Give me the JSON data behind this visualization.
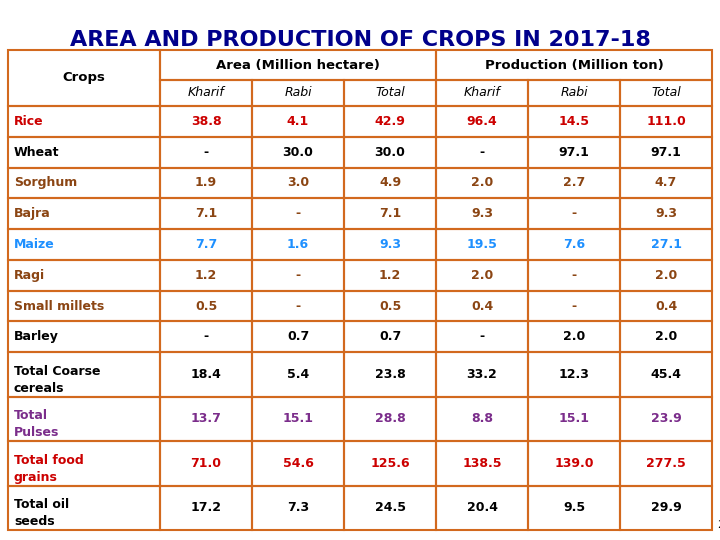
{
  "title": "AREA AND PRODUCTION OF CROPS IN 2017-18",
  "title_color": "#00008B",
  "background_color": "#FFFFFF",
  "border_color": "#D2691E",
  "rows": [
    {
      "crop": "Rice",
      "values": [
        "38.8",
        "4.1",
        "42.9",
        "96.4",
        "14.5",
        "111.0"
      ],
      "color": "#CC0000"
    },
    {
      "crop": "Wheat",
      "values": [
        "-",
        "30.0",
        "30.0",
        "-",
        "97.1",
        "97.1"
      ],
      "color": "#000000"
    },
    {
      "crop": "Sorghum",
      "values": [
        "1.9",
        "3.0",
        "4.9",
        "2.0",
        "2.7",
        "4.7"
      ],
      "color": "#8B4513"
    },
    {
      "crop": "Bajra",
      "values": [
        "7.1",
        "-",
        "7.1",
        "9.3",
        "-",
        "9.3"
      ],
      "color": "#8B4513"
    },
    {
      "crop": "Maize",
      "values": [
        "7.7",
        "1.6",
        "9.3",
        "19.5",
        "7.6",
        "27.1"
      ],
      "color": "#1E90FF"
    },
    {
      "crop": "Ragi",
      "values": [
        "1.2",
        "-",
        "1.2",
        "2.0",
        "-",
        "2.0"
      ],
      "color": "#8B4513"
    },
    {
      "crop": "Small millets",
      "values": [
        "0.5",
        "-",
        "0.5",
        "0.4",
        "-",
        "0.4"
      ],
      "color": "#8B4513"
    },
    {
      "crop": "Barley",
      "values": [
        "-",
        "0.7",
        "0.7",
        "-",
        "2.0",
        "2.0"
      ],
      "color": "#000000"
    },
    {
      "crop": "Total Coarse\ncereals",
      "values": [
        "18.4",
        "5.4",
        "23.8",
        "33.2",
        "12.3",
        "45.4"
      ],
      "color": "#000000"
    },
    {
      "crop": "Total\nPulses",
      "values": [
        "13.7",
        "15.1",
        "28.8",
        "8.8",
        "15.1",
        "23.9"
      ],
      "color": "#7B2D8B"
    },
    {
      "crop": "Total food\ngrains",
      "values": [
        "71.0",
        "54.6",
        "125.6",
        "138.5",
        "139.0",
        "277.5"
      ],
      "color": "#CC0000"
    },
    {
      "crop": "Total oil\nseeds",
      "values": [
        "17.2",
        "7.3",
        "24.5",
        "20.4",
        "9.5",
        "29.9"
      ],
      "color": "#000000"
    }
  ]
}
